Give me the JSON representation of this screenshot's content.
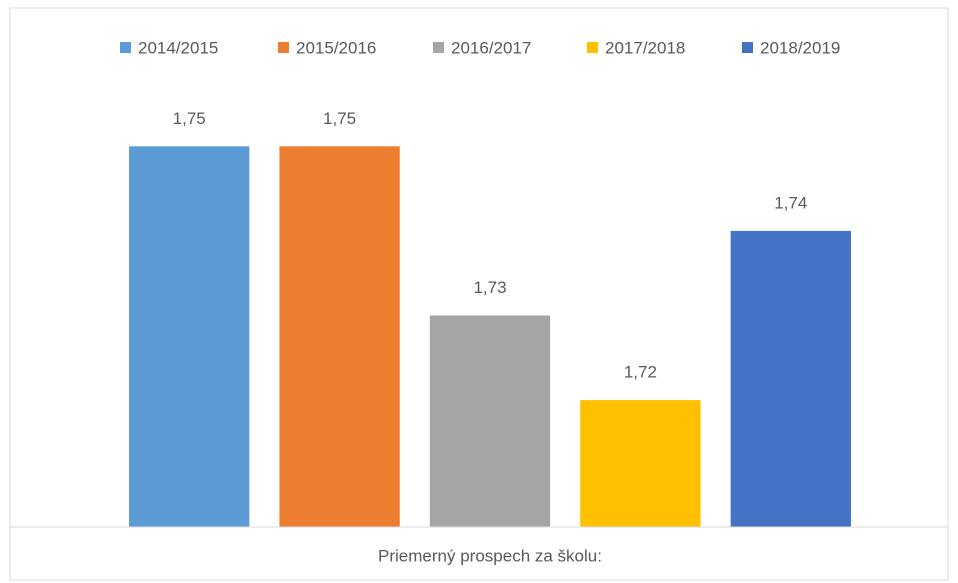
{
  "chart_data": {
    "type": "bar",
    "categories": [
      "Priemerný prospech za školu:"
    ],
    "series": [
      {
        "name": "2014/2015",
        "color": "#5b9bd5",
        "values": [
          1.75
        ],
        "value_labels": [
          "1,75"
        ]
      },
      {
        "name": "2015/2016",
        "color": "#ed7d31",
        "values": [
          1.75
        ],
        "value_labels": [
          "1,75"
        ]
      },
      {
        "name": "2016/2017",
        "color": "#a5a5a5",
        "values": [
          1.73
        ],
        "value_labels": [
          "1,73"
        ]
      },
      {
        "name": "2017/2018",
        "color": "#ffc000",
        "values": [
          1.72
        ],
        "value_labels": [
          "1,72"
        ]
      },
      {
        "name": "2018/2019",
        "color": "#4472c4",
        "values": [
          1.74
        ],
        "value_labels": [
          "1,74"
        ]
      }
    ],
    "ylim": [
      1.705,
      1.755
    ],
    "legend": "top"
  }
}
